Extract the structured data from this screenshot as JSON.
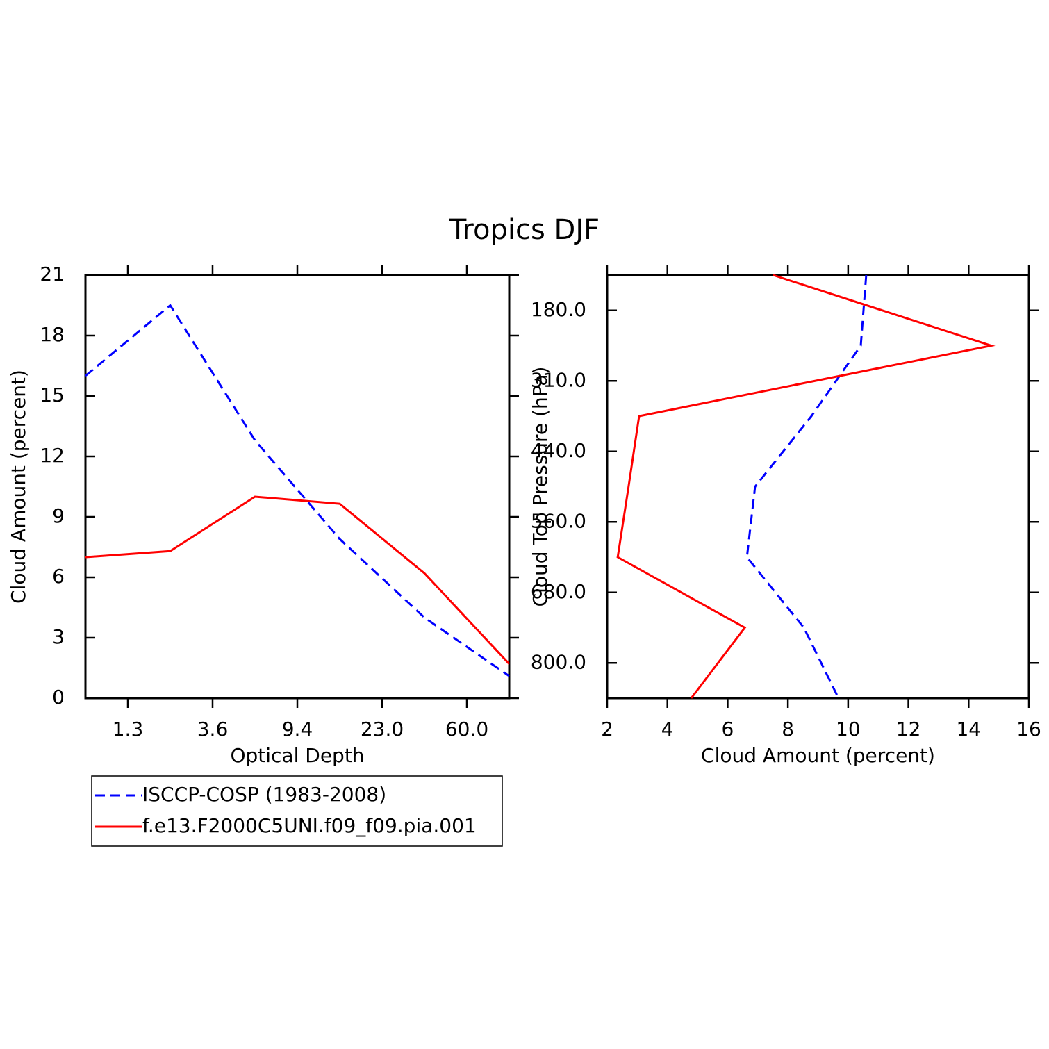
{
  "title": "Tropics DJF",
  "legend": {
    "position": "bottom-left"
  },
  "chart_data": [
    {
      "type": "line",
      "x": [
        0,
        1,
        2,
        3,
        4,
        5
      ],
      "xlabel": "Optical Depth",
      "ylabel": "Cloud Amount (percent)",
      "xlim": [
        0,
        5
      ],
      "xticks": [
        {
          "value": 0.5,
          "label": "1.3"
        },
        {
          "value": 1.5,
          "label": "3.6"
        },
        {
          "value": 2.5,
          "label": "9.4"
        },
        {
          "value": 3.5,
          "label": "23.0"
        },
        {
          "value": 4.5,
          "label": "60.0"
        }
      ],
      "ylim": [
        0,
        21
      ],
      "yticks": [
        0,
        3,
        6,
        9,
        12,
        15,
        18,
        21
      ],
      "series": [
        {
          "name": "ISCCP-COSP (1983-2008)",
          "color": "#0000ff",
          "line_style": "dashed",
          "values": [
            16.0,
            19.5,
            12.8,
            7.9,
            4.0,
            1.1
          ]
        },
        {
          "name": "f.e13.F2000C5UNI.f09_f09.pia.001",
          "color": "#ff0000",
          "line_style": "solid",
          "values": [
            7.0,
            7.3,
            10.0,
            9.65,
            6.2,
            1.7
          ]
        }
      ]
    },
    {
      "type": "line",
      "orientation": "horizontal",
      "y": [
        0,
        1,
        2,
        3,
        4,
        5,
        6
      ],
      "xlabel": "Cloud Amount (percent)",
      "ylabel": "Cloud Top Pressure (hPa)",
      "xlim": [
        2,
        16
      ],
      "xticks": [
        2,
        4,
        6,
        8,
        10,
        12,
        14,
        16
      ],
      "ylim": [
        0,
        6
      ],
      "y_inverted": true,
      "yticks": [
        {
          "value": 0.5,
          "label": "180.0"
        },
        {
          "value": 1.5,
          "label": "310.0"
        },
        {
          "value": 2.5,
          "label": "440.0"
        },
        {
          "value": 3.5,
          "label": "560.0"
        },
        {
          "value": 4.5,
          "label": "680.0"
        },
        {
          "value": 5.5,
          "label": "800.0"
        }
      ],
      "series": [
        {
          "color": "#0000ff",
          "line_style": "dashed",
          "values": [
            10.6,
            10.42,
            8.78,
            6.91,
            6.64,
            8.53,
            9.68
          ]
        },
        {
          "color": "#ff0000",
          "line_style": "solid",
          "values": [
            7.51,
            14.75,
            3.06,
            2.71,
            2.35,
            6.57,
            4.79
          ]
        }
      ]
    }
  ]
}
